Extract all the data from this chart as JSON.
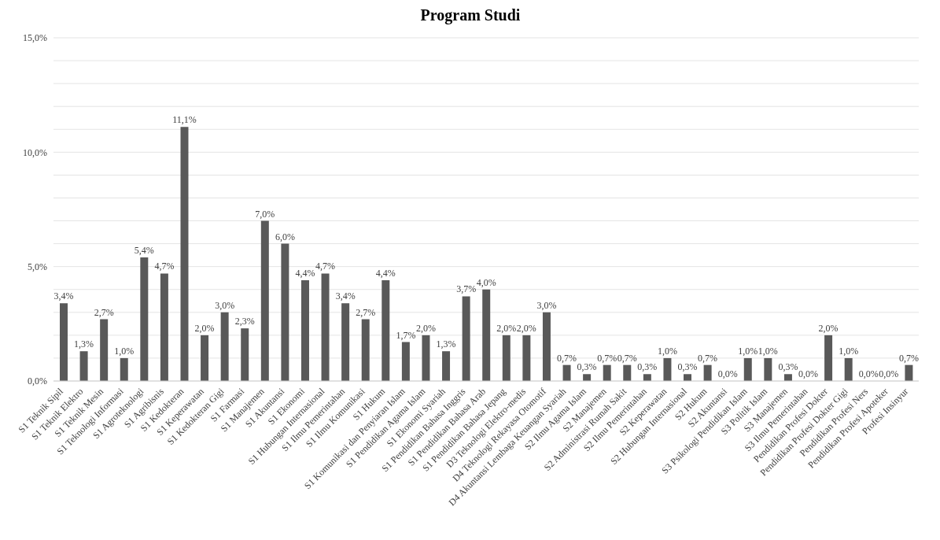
{
  "chart_data": {
    "type": "bar",
    "title": "Program Studi",
    "categories": [
      "S1 Teknik Sipil",
      "S1 Teknik Elektro",
      "S1 Teknik Mesin",
      "S1 Teknologi Informasi",
      "S1 Agroteknologi",
      "S1 Agribisnis",
      "S1 Kedokteran",
      "S1 Keperawatan",
      "S1 Kedokteran Gigi",
      "S1 Farmasi",
      "S1 Manajemen",
      "S1 Akuntansi",
      "S1 Ekonomi",
      "S1 Hubungan Internasional",
      "S1 Ilmu Pemerintahan",
      "S1 Ilmu Komunikasi",
      "S1 Hukum",
      "S1 Komunikasi dan Penyiaran Islam",
      "S1 Pendidikan Agama Islam",
      "S1 Ekonomi Syariah",
      "S1 Pendidikan Bahasa Inggris",
      "S1 Pendidikan Bahasa Arab",
      "S1 Pendidikan Bahasa Jepang",
      "D3 Teknologi Elektro-medis",
      "D4 Teknologi Rekayasa Otomotif",
      "D4 Akuntansi Lembaga Keuangan Syariah",
      "S2 Ilmu Agama Islam",
      "S2 Manajemen",
      "S2 Administrasi Rumah Sakit",
      "S2 Ilmu Pemerintahan",
      "S2 Keperawatan",
      "S2 Hubungan Internasional",
      "S2 Hukum",
      "S2 Akuntansi",
      "S3 Psikologi Pendidikan Islam",
      "S3 Politik Islam",
      "S3 Manajemen",
      "S3 Ilmu Pemerintahan",
      "Pendidikan Profesi Dokter",
      "Pendidikan Profesi Dokter Gigi",
      "Pendidikan Profesi Ners",
      "Pendidikan Profesi Apoteker",
      "Profesi Insinyur"
    ],
    "values": [
      3.4,
      1.3,
      2.7,
      1.0,
      5.4,
      4.7,
      11.1,
      2.0,
      3.0,
      2.3,
      7.0,
      6.0,
      4.4,
      4.7,
      3.4,
      2.7,
      4.4,
      1.7,
      2.0,
      1.3,
      3.7,
      4.0,
      2.0,
      2.0,
      3.0,
      0.7,
      0.3,
      0.7,
      0.7,
      0.3,
      1.0,
      0.3,
      0.7,
      0.0,
      1.0,
      1.0,
      0.3,
      0.0,
      2.0,
      1.0,
      0.0,
      0.0,
      0.7
    ],
    "value_labels": [
      "3,4%",
      "1,3%",
      "2,7%",
      "1,0%",
      "5,4%",
      "4,7%",
      "11,1%",
      "2,0%",
      "3,0%",
      "2,3%",
      "7,0%",
      "6,0%",
      "4,4%",
      "4,7%",
      "3,4%",
      "2,7%",
      "4,4%",
      "1,7%",
      "2,0%",
      "1,3%",
      "3,7%",
      "4,0%",
      "2,0%",
      "2,0%",
      "3,0%",
      "0,7%",
      "0,3%",
      "0,7%",
      "0,7%",
      "0,3%",
      "1,0%",
      "0,3%",
      "0,7%",
      "0,0%",
      "1,0%",
      "1,0%",
      "0,3%",
      "0,0%",
      "2,0%",
      "1,0%",
      "0,0%",
      "0,0%",
      "0,7%"
    ],
    "color": "#595959",
    "ylim": [
      0,
      15
    ],
    "yticks": [
      {
        "value": 0,
        "label": "0,0%"
      },
      {
        "value": 1,
        "label": null
      },
      {
        "value": 2,
        "label": null
      },
      {
        "value": 3,
        "label": null
      },
      {
        "value": 4,
        "label": null
      },
      {
        "value": 5,
        "label": "5,0%"
      },
      {
        "value": 6,
        "label": null
      },
      {
        "value": 7,
        "label": null
      },
      {
        "value": 8,
        "label": null
      },
      {
        "value": 9,
        "label": null
      },
      {
        "value": 10,
        "label": "10,0%"
      },
      {
        "value": 11,
        "label": null
      },
      {
        "value": 12,
        "label": null
      },
      {
        "value": 13,
        "label": null
      },
      {
        "value": 14,
        "label": null
      },
      {
        "value": 15,
        "label": "15,0%"
      }
    ],
    "grid": "y",
    "legend": false
  }
}
